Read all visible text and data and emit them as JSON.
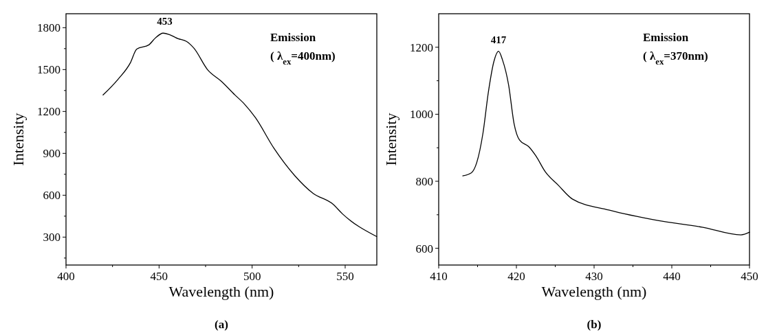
{
  "chart_data": [
    {
      "type": "line",
      "title": "(a)",
      "xlabel": "Wavelength (nm)",
      "ylabel": "Intensity",
      "xlim": [
        400,
        567
      ],
      "ylim": [
        100,
        1900
      ],
      "xticks": [
        400,
        {
          "value": 425,
          "label": null
        },
        450,
        {
          "value": 475,
          "label": null
        },
        500,
        {
          "value": 525,
          "label": null
        },
        550
      ],
      "yticks": [
        {
          "value": 150,
          "label": null
        },
        300,
        {
          "value": 450,
          "label": null
        },
        600,
        {
          "value": 750,
          "label": null
        },
        900,
        {
          "value": 1050,
          "label": null
        },
        1200,
        {
          "value": 1350,
          "label": null
        },
        1500,
        {
          "value": 1650,
          "label": null
        },
        1800
      ],
      "annotations": [
        {
          "text": "453",
          "x": 453,
          "y": 1761
        },
        "Emission",
        "( λ$_{ex}$=400nm)"
      ],
      "series": [
        {
          "color": "#000000",
          "x": [
            419.9,
            428,
            434.6,
            438,
            444.5,
            448,
            452.2,
            455.5,
            460.3,
            464.7,
            468.8,
            476,
            483.5,
            490.8,
            495.8,
            501.8,
            511.6,
            522.8,
            532.7,
            543.4,
            548.5,
            566.9
          ],
          "values": [
            1318,
            1431,
            1549,
            1647,
            1677,
            1726,
            1761,
            1751,
            1721,
            1702,
            1652,
            1500,
            1416,
            1318,
            1254,
            1155,
            939,
            742,
            614,
            536,
            467,
            304
          ]
        }
      ]
    },
    {
      "type": "line",
      "title": "(b)",
      "xlabel": "Wavelength (nm)",
      "ylabel": "Intensity",
      "xlim": [
        410,
        450
      ],
      "ylim": [
        550,
        1300
      ],
      "xticks": [
        410,
        {
          "value": 415,
          "label": null
        },
        420,
        {
          "value": 425,
          "label": null
        },
        430,
        {
          "value": 435,
          "label": null
        },
        440,
        {
          "value": 445,
          "label": null
        },
        450
      ],
      "yticks": [
        600,
        {
          "value": 700,
          "label": null
        },
        800,
        {
          "value": 900,
          "label": null
        },
        1000,
        {
          "value": 1100,
          "label": null
        },
        1200
      ],
      "annotations": [
        {
          "text": "417",
          "x": 417.7,
          "y": 1188
        },
        "Emission",
        "( λ$_{ex}$=370nm)"
      ],
      "series": [
        {
          "color": "#000000",
          "x": [
            413.1,
            414.2,
            414.9,
            415.7,
            416.4,
            417.1,
            417.7,
            418.2,
            419,
            419.7,
            420.4,
            421.6,
            422.5,
            423.7,
            425.4,
            427.2,
            431.9,
            438.2,
            443.9,
            448.9,
            450
          ],
          "values": [
            816,
            825,
            856,
            944,
            1067,
            1157,
            1188,
            1163,
            1087,
            972,
            923,
            903,
            876,
            829,
            788,
            747,
            714,
            683,
            663,
            640,
            648
          ]
        }
      ]
    }
  ]
}
